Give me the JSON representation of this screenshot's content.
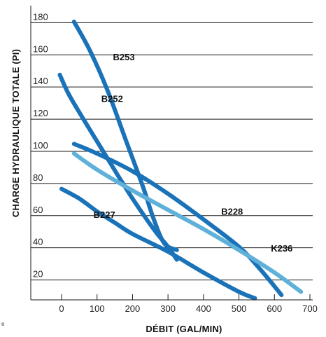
{
  "chart_data": {
    "type": "line",
    "xlabel": "DÉBIT (GAL/MIN)",
    "ylabel": "CHARGE HYDRAULIQUE TOTALE (PI)",
    "xlim": [
      -10,
      700
    ],
    "ylim": [
      5,
      188
    ],
    "x_ticks": [
      0,
      100,
      200,
      300,
      400,
      500,
      600,
      700
    ],
    "y_ticks": [
      20,
      40,
      60,
      80,
      100,
      120,
      140,
      160,
      180
    ],
    "y_grid": true,
    "corner_note": "e",
    "colors": {
      "dark_blue": "#1a72b8",
      "light_blue": "#5fb1d9"
    },
    "series": [
      {
        "name": "B253",
        "color": "#1a72b8",
        "label_at": [
          145,
          154
        ],
        "points": [
          [
            35,
            178
          ],
          [
            80,
            160
          ],
          [
            130,
            135
          ],
          [
            180,
            105
          ],
          [
            230,
            75
          ],
          [
            260,
            55
          ],
          [
            290,
            40
          ],
          [
            325,
            36
          ]
        ]
      },
      {
        "name": "B252",
        "color": "#1a72b8",
        "label_at": [
          112,
          128
        ],
        "points": [
          [
            -5,
            145
          ],
          [
            20,
            133
          ],
          [
            60,
            118
          ],
          [
            110,
            100
          ],
          [
            160,
            82
          ],
          [
            200,
            68
          ],
          [
            240,
            55
          ],
          [
            270,
            46
          ],
          [
            300,
            38
          ],
          [
            325,
            30
          ]
        ]
      },
      {
        "name": "B228",
        "color": "#1a72b8",
        "label_at": [
          450,
          58
        ],
        "points": [
          [
            35,
            102
          ],
          [
            100,
            96
          ],
          [
            200,
            85
          ],
          [
            300,
            71
          ],
          [
            400,
            55
          ],
          [
            500,
            38
          ],
          [
            560,
            24
          ],
          [
            620,
            8
          ]
        ]
      },
      {
        "name": "K236",
        "color": "#5fb1d9",
        "label_at": [
          590,
          35
        ],
        "points": [
          [
            35,
            96
          ],
          [
            100,
            86
          ],
          [
            200,
            73
          ],
          [
            300,
            61
          ],
          [
            400,
            49
          ],
          [
            500,
            36
          ],
          [
            600,
            22
          ],
          [
            675,
            10
          ]
        ]
      },
      {
        "name": "B227",
        "color": "#1a72b8",
        "label_at": [
          90,
          56
        ],
        "points": [
          [
            0,
            74
          ],
          [
            50,
            68
          ],
          [
            100,
            60
          ],
          [
            150,
            53
          ],
          [
            200,
            46
          ],
          [
            300,
            35
          ],
          [
            400,
            22
          ],
          [
            500,
            10
          ],
          [
            545,
            6
          ]
        ]
      }
    ]
  }
}
